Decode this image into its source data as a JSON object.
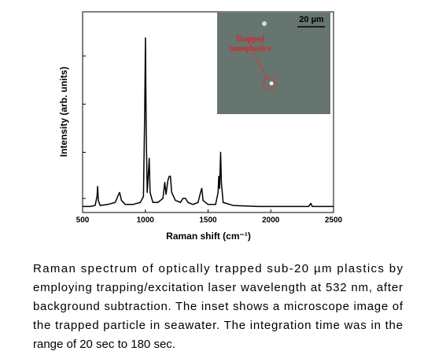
{
  "chart_data": {
    "type": "line",
    "xlabel": "Raman shift (cm⁻¹)",
    "ylabel": "Intensity (arb. units)",
    "xlim": [
      500,
      2500
    ],
    "xticks": [
      500,
      1000,
      1500,
      2000,
      2500
    ],
    "ylim": [
      0,
      1
    ],
    "yticks": [
      0.07,
      0.3,
      0.54,
      0.78
    ],
    "color": "#000000",
    "x": [
      500,
      560,
      600,
      615,
      620,
      625,
      640,
      700,
      760,
      780,
      795,
      810,
      840,
      900,
      960,
      985,
      995,
      1001,
      1007,
      1015,
      1025,
      1031,
      1038,
      1060,
      1100,
      1140,
      1155,
      1165,
      1180,
      1190,
      1200,
      1210,
      1240,
      1280,
      1300,
      1320,
      1340,
      1380,
      1420,
      1440,
      1450,
      1460,
      1500,
      1560,
      1580,
      1585,
      1592,
      1600,
      1606,
      1620,
      1700,
      1900,
      2100,
      2300,
      2320,
      2330,
      2500
    ],
    "values": [
      0.03,
      0.03,
      0.035,
      0.08,
      0.13,
      0.06,
      0.035,
      0.04,
      0.05,
      0.08,
      0.1,
      0.06,
      0.04,
      0.04,
      0.05,
      0.08,
      0.5,
      0.87,
      0.4,
      0.1,
      0.2,
      0.27,
      0.1,
      0.05,
      0.05,
      0.07,
      0.15,
      0.09,
      0.16,
      0.18,
      0.18,
      0.1,
      0.06,
      0.05,
      0.07,
      0.07,
      0.05,
      0.04,
      0.05,
      0.1,
      0.12,
      0.06,
      0.04,
      0.04,
      0.1,
      0.18,
      0.12,
      0.3,
      0.15,
      0.05,
      0.035,
      0.03,
      0.03,
      0.03,
      0.045,
      0.03,
      0.03
    ],
    "annotations": [
      "20 µm",
      "Trapped",
      "nanoplastics"
    ]
  },
  "caption": [
    "Raman spectrum of optically trapped sub-20 µm plastics by",
    "employing trapping/excitation laser wavelength at 532 nm, after",
    "background subtraction. The inset shows a microscope image of",
    "the trapped particle in seawater. The integration time was in the",
    "range of 20 sec to 180 sec."
  ]
}
